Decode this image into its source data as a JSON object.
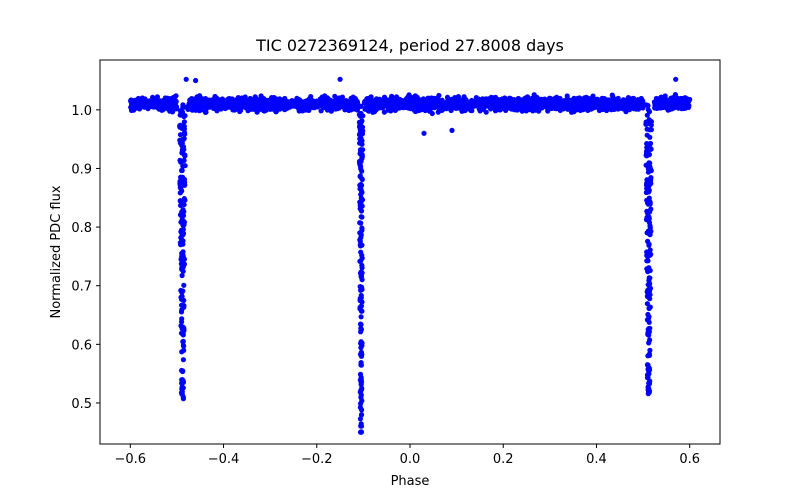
{
  "chart_data": {
    "type": "scatter",
    "title": "TIC 0272369124, period 27.8008 days",
    "xlabel": "Phase",
    "ylabel": "Normalized PDC flux",
    "xlim": [
      -0.665,
      0.665
    ],
    "ylim": [
      0.43,
      1.085
    ],
    "xticks": [
      -0.6,
      -0.4,
      -0.2,
      0.0,
      0.2,
      0.4,
      0.6
    ],
    "xtick_labels": [
      "−0.6",
      "−0.4",
      "−0.2",
      "0.0",
      "0.2",
      "0.4",
      "0.6"
    ],
    "yticks": [
      0.5,
      0.6,
      0.7,
      0.8,
      0.9,
      1.0
    ],
    "ytick_labels": [
      "0.5",
      "0.6",
      "0.7",
      "0.8",
      "0.9",
      "1.0"
    ],
    "grid": false,
    "marker_color": "#0000ff",
    "series": [
      {
        "name": "flux",
        "baseline_range": [
          -0.6,
          0.6
        ],
        "baseline_level": 1.01,
        "baseline_scatter": 0.035,
        "eclipses": [
          {
            "phase_center": -0.488,
            "half_width": 0.012,
            "min_flux": 0.505
          },
          {
            "phase_center": -0.105,
            "half_width": 0.007,
            "min_flux": 0.45
          },
          {
            "phase_center": 0.512,
            "half_width": 0.012,
            "min_flux": 0.505
          }
        ],
        "outliers": [
          {
            "x": -0.48,
            "y": 1.052
          },
          {
            "x": -0.15,
            "y": 1.052
          },
          {
            "x": 0.03,
            "y": 0.96
          },
          {
            "x": 0.09,
            "y": 0.965
          },
          {
            "x": 0.57,
            "y": 1.052
          },
          {
            "x": -0.46,
            "y": 1.05
          }
        ]
      }
    ]
  }
}
